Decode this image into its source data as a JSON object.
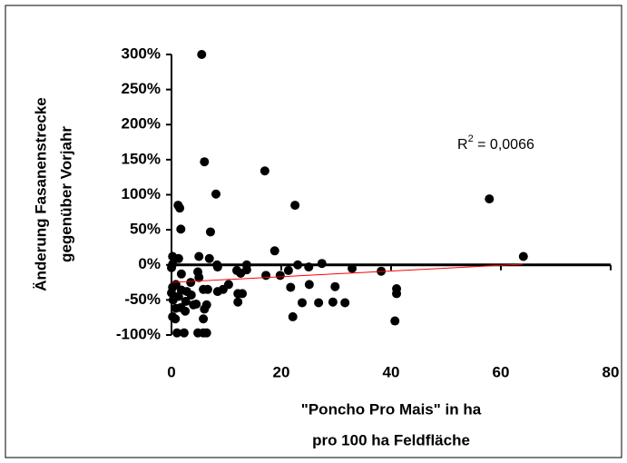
{
  "chart_data": {
    "type": "scatter",
    "y_label": [
      "Änderung Fasanenstrecke",
      "gegenüber Vorjahr"
    ],
    "x_label": [
      "\"Poncho Pro Mais\" in ha",
      "pro 100 ha Feldfläche"
    ],
    "annotation": [
      "R",
      "2",
      " = 0,0066"
    ],
    "color": "#000000",
    "x": [
      5.5,
      6.0,
      17.0,
      57.9,
      8.1,
      1.2,
      1.5,
      22.5,
      7.1,
      1.7,
      18.8,
      64.1,
      0.2,
      1.3,
      5.0,
      6.9,
      8.3,
      8.4,
      0.2,
      0,
      13.7,
      13.7,
      23,
      27.4,
      32.9,
      38.2,
      11.9,
      12.6,
      19.8,
      17.2,
      21.3,
      25,
      4.8,
      5,
      1.8,
      3.5,
      0.8,
      0.2,
      0,
      0.3,
      0.8,
      0.2,
      0.7,
      1,
      2.3,
      4.8,
      5.8,
      6.4,
      5.8,
      6.0,
      6.4,
      5.8,
      6.6,
      8.4,
      9.4,
      10.4,
      12.1,
      12.9,
      12.1,
      2.8,
      3.6,
      2.6,
      4,
      1.7,
      2.5,
      4.5,
      1.8,
      1.3,
      21.7,
      25.1,
      29.8,
      23.8,
      22.1,
      26.8,
      29.4,
      31.6,
      41,
      41,
      40.7
    ],
    "values": [
      300,
      147,
      134,
      94,
      101,
      85,
      81,
      85,
      47,
      51,
      20,
      12,
      12,
      9,
      12,
      9,
      0,
      -3,
      1,
      -4,
      0,
      -7,
      0,
      2,
      -5,
      -9,
      -8,
      -12,
      -15,
      -15,
      -8,
      -3,
      -10,
      -18,
      -13,
      -25,
      -28,
      -32,
      -40,
      -50,
      -62,
      -74,
      -77,
      -97,
      -97,
      -97,
      -97,
      -97,
      -77,
      -63,
      -57,
      -35,
      -35,
      -38,
      -35,
      -28,
      -41,
      -41,
      -53,
      -38,
      -43,
      -52,
      -57,
      -61,
      -66,
      -56,
      -36,
      -45,
      -32,
      -28,
      -31,
      -54,
      -74,
      -54,
      -53,
      -54,
      -34,
      -41,
      -80
    ],
    "trendline": {
      "x": [
        0,
        64
      ],
      "y": [
        -25,
        1
      ],
      "color": "#ff0000"
    },
    "xlim": [
      0,
      80
    ],
    "xticks": [
      0,
      20,
      40,
      60,
      80
    ],
    "ylim": [
      -100,
      300
    ],
    "yticks": [
      {
        "value": -100,
        "label": "-100%"
      },
      {
        "value": -50,
        "label": "-50%"
      },
      {
        "value": 0,
        "label": "0%"
      },
      {
        "value": 50,
        "label": "50%"
      },
      {
        "value": 100,
        "label": "100%"
      },
      {
        "value": 150,
        "label": "150%"
      },
      {
        "value": 200,
        "label": "200%"
      },
      {
        "value": 250,
        "label": "250%"
      },
      {
        "value": 300,
        "label": "300%"
      }
    ],
    "grid": false
  }
}
